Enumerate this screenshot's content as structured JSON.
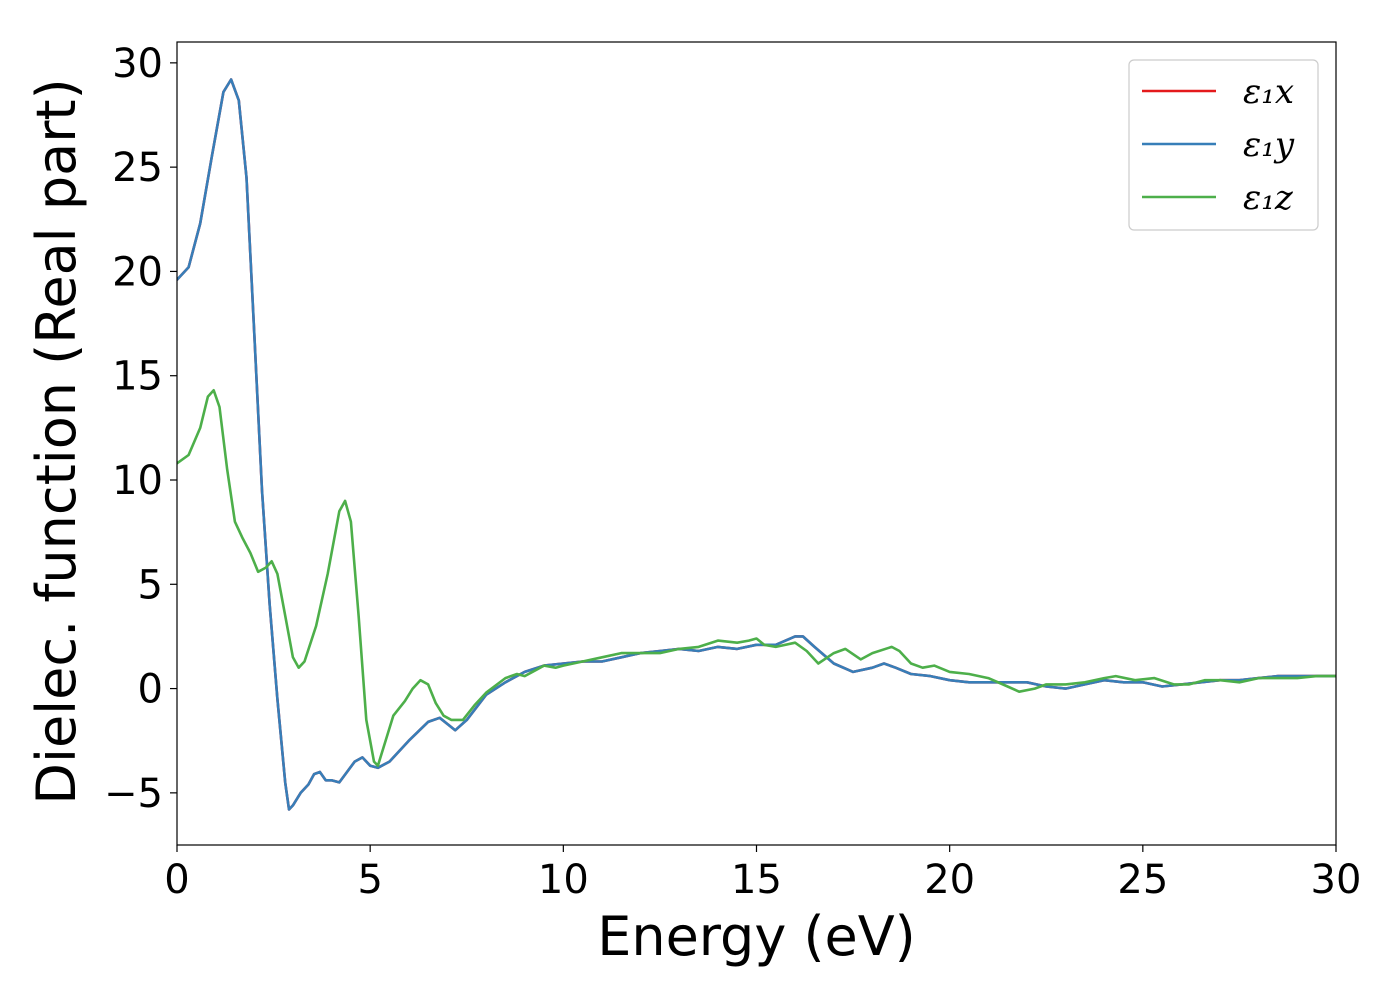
{
  "chart_data": {
    "type": "line",
    "xlabel": "Energy (eV)",
    "ylabel": "Dielec. function (Real part)",
    "xlim": [
      0,
      30
    ],
    "ylim": [
      -7.5,
      31
    ],
    "xticks": [
      0,
      5,
      10,
      15,
      20,
      25,
      30
    ],
    "yticks": [
      -5,
      0,
      5,
      10,
      15,
      20,
      25,
      30
    ],
    "xtick_labels": [
      "0",
      "5",
      "10",
      "15",
      "20",
      "25",
      "30"
    ],
    "ytick_labels": [
      "−5",
      "0",
      "5",
      "10",
      "15",
      "20",
      "25",
      "30"
    ],
    "grid": false,
    "legend_position": "top-right",
    "series": [
      {
        "name": "ε₁x",
        "color": "#e41a1c",
        "points": [
          [
            0,
            19.6
          ],
          [
            0.3,
            20.2
          ],
          [
            0.6,
            22.3
          ],
          [
            0.9,
            25.5
          ],
          [
            1.2,
            28.6
          ],
          [
            1.4,
            29.2
          ],
          [
            1.6,
            28.2
          ],
          [
            1.8,
            24.5
          ],
          [
            2.0,
            17.0
          ],
          [
            2.2,
            9.5
          ],
          [
            2.4,
            4.0
          ],
          [
            2.6,
            -0.5
          ],
          [
            2.8,
            -4.5
          ],
          [
            2.9,
            -5.8
          ],
          [
            3.0,
            -5.6
          ],
          [
            3.2,
            -5.0
          ],
          [
            3.4,
            -4.6
          ],
          [
            3.55,
            -4.1
          ],
          [
            3.7,
            -4.0
          ],
          [
            3.85,
            -4.4
          ],
          [
            4.0,
            -4.4
          ],
          [
            4.2,
            -4.5
          ],
          [
            4.4,
            -4.0
          ],
          [
            4.6,
            -3.5
          ],
          [
            4.8,
            -3.3
          ],
          [
            5.0,
            -3.7
          ],
          [
            5.2,
            -3.8
          ],
          [
            5.5,
            -3.5
          ],
          [
            6.0,
            -2.5
          ],
          [
            6.5,
            -1.6
          ],
          [
            6.8,
            -1.4
          ],
          [
            7.0,
            -1.7
          ],
          [
            7.2,
            -2.0
          ],
          [
            7.5,
            -1.5
          ],
          [
            8.0,
            -0.3
          ],
          [
            8.5,
            0.3
          ],
          [
            9.0,
            0.8
          ],
          [
            9.5,
            1.1
          ],
          [
            10.0,
            1.2
          ],
          [
            10.5,
            1.3
          ],
          [
            11.0,
            1.3
          ],
          [
            11.5,
            1.5
          ],
          [
            12.0,
            1.7
          ],
          [
            12.5,
            1.8
          ],
          [
            13.0,
            1.9
          ],
          [
            13.5,
            1.8
          ],
          [
            14.0,
            2.0
          ],
          [
            14.5,
            1.9
          ],
          [
            15.0,
            2.1
          ],
          [
            15.5,
            2.1
          ],
          [
            16.0,
            2.5
          ],
          [
            16.2,
            2.5
          ],
          [
            16.5,
            2.0
          ],
          [
            17.0,
            1.2
          ],
          [
            17.5,
            0.8
          ],
          [
            18.0,
            1.0
          ],
          [
            18.3,
            1.2
          ],
          [
            18.6,
            1.0
          ],
          [
            19.0,
            0.7
          ],
          [
            19.5,
            0.6
          ],
          [
            20.0,
            0.4
          ],
          [
            20.5,
            0.3
          ],
          [
            21.0,
            0.3
          ],
          [
            21.5,
            0.3
          ],
          [
            22.0,
            0.3
          ],
          [
            22.5,
            0.1
          ],
          [
            23.0,
            0.0
          ],
          [
            23.5,
            0.2
          ],
          [
            24.0,
            0.4
          ],
          [
            24.5,
            0.3
          ],
          [
            25.0,
            0.3
          ],
          [
            25.5,
            0.1
          ],
          [
            26.0,
            0.2
          ],
          [
            26.5,
            0.3
          ],
          [
            27.0,
            0.4
          ],
          [
            27.5,
            0.4
          ],
          [
            28.0,
            0.5
          ],
          [
            28.5,
            0.6
          ],
          [
            29.0,
            0.6
          ],
          [
            29.5,
            0.6
          ],
          [
            30.0,
            0.6
          ]
        ]
      },
      {
        "name": "ε₁y",
        "color": "#377eb8",
        "points": [
          [
            0,
            19.6
          ],
          [
            0.3,
            20.2
          ],
          [
            0.6,
            22.3
          ],
          [
            0.9,
            25.5
          ],
          [
            1.2,
            28.6
          ],
          [
            1.4,
            29.2
          ],
          [
            1.6,
            28.2
          ],
          [
            1.8,
            24.5
          ],
          [
            2.0,
            17.0
          ],
          [
            2.2,
            9.5
          ],
          [
            2.4,
            4.0
          ],
          [
            2.6,
            -0.5
          ],
          [
            2.8,
            -4.5
          ],
          [
            2.9,
            -5.8
          ],
          [
            3.0,
            -5.6
          ],
          [
            3.2,
            -5.0
          ],
          [
            3.4,
            -4.6
          ],
          [
            3.55,
            -4.1
          ],
          [
            3.7,
            -4.0
          ],
          [
            3.85,
            -4.4
          ],
          [
            4.0,
            -4.4
          ],
          [
            4.2,
            -4.5
          ],
          [
            4.4,
            -4.0
          ],
          [
            4.6,
            -3.5
          ],
          [
            4.8,
            -3.3
          ],
          [
            5.0,
            -3.7
          ],
          [
            5.2,
            -3.8
          ],
          [
            5.5,
            -3.5
          ],
          [
            6.0,
            -2.5
          ],
          [
            6.5,
            -1.6
          ],
          [
            6.8,
            -1.4
          ],
          [
            7.0,
            -1.7
          ],
          [
            7.2,
            -2.0
          ],
          [
            7.5,
            -1.5
          ],
          [
            8.0,
            -0.3
          ],
          [
            8.5,
            0.3
          ],
          [
            9.0,
            0.8
          ],
          [
            9.5,
            1.1
          ],
          [
            10.0,
            1.2
          ],
          [
            10.5,
            1.3
          ],
          [
            11.0,
            1.3
          ],
          [
            11.5,
            1.5
          ],
          [
            12.0,
            1.7
          ],
          [
            12.5,
            1.8
          ],
          [
            13.0,
            1.9
          ],
          [
            13.5,
            1.8
          ],
          [
            14.0,
            2.0
          ],
          [
            14.5,
            1.9
          ],
          [
            15.0,
            2.1
          ],
          [
            15.5,
            2.1
          ],
          [
            16.0,
            2.5
          ],
          [
            16.2,
            2.5
          ],
          [
            16.5,
            2.0
          ],
          [
            17.0,
            1.2
          ],
          [
            17.5,
            0.8
          ],
          [
            18.0,
            1.0
          ],
          [
            18.3,
            1.2
          ],
          [
            18.6,
            1.0
          ],
          [
            19.0,
            0.7
          ],
          [
            19.5,
            0.6
          ],
          [
            20.0,
            0.4
          ],
          [
            20.5,
            0.3
          ],
          [
            21.0,
            0.3
          ],
          [
            21.5,
            0.3
          ],
          [
            22.0,
            0.3
          ],
          [
            22.5,
            0.1
          ],
          [
            23.0,
            0.0
          ],
          [
            23.5,
            0.2
          ],
          [
            24.0,
            0.4
          ],
          [
            24.5,
            0.3
          ],
          [
            25.0,
            0.3
          ],
          [
            25.5,
            0.1
          ],
          [
            26.0,
            0.2
          ],
          [
            26.5,
            0.3
          ],
          [
            27.0,
            0.4
          ],
          [
            27.5,
            0.4
          ],
          [
            28.0,
            0.5
          ],
          [
            28.5,
            0.6
          ],
          [
            29.0,
            0.6
          ],
          [
            29.5,
            0.6
          ],
          [
            30.0,
            0.6
          ]
        ]
      },
      {
        "name": "ε₁z",
        "color": "#4daf4a",
        "points": [
          [
            0,
            10.8
          ],
          [
            0.3,
            11.2
          ],
          [
            0.6,
            12.5
          ],
          [
            0.8,
            14.0
          ],
          [
            0.95,
            14.3
          ],
          [
            1.1,
            13.5
          ],
          [
            1.3,
            10.5
          ],
          [
            1.5,
            8.0
          ],
          [
            1.7,
            7.2
          ],
          [
            1.9,
            6.5
          ],
          [
            2.1,
            5.6
          ],
          [
            2.3,
            5.8
          ],
          [
            2.45,
            6.1
          ],
          [
            2.6,
            5.5
          ],
          [
            2.8,
            3.5
          ],
          [
            3.0,
            1.5
          ],
          [
            3.15,
            1.0
          ],
          [
            3.3,
            1.3
          ],
          [
            3.6,
            3.0
          ],
          [
            3.9,
            5.5
          ],
          [
            4.2,
            8.5
          ],
          [
            4.35,
            9.0
          ],
          [
            4.5,
            8.0
          ],
          [
            4.7,
            3.5
          ],
          [
            4.9,
            -1.5
          ],
          [
            5.1,
            -3.5
          ],
          [
            5.2,
            -3.7
          ],
          [
            5.4,
            -2.5
          ],
          [
            5.6,
            -1.3
          ],
          [
            5.9,
            -0.6
          ],
          [
            6.1,
            0.0
          ],
          [
            6.3,
            0.4
          ],
          [
            6.5,
            0.2
          ],
          [
            6.7,
            -0.7
          ],
          [
            6.9,
            -1.3
          ],
          [
            7.1,
            -1.5
          ],
          [
            7.4,
            -1.5
          ],
          [
            7.7,
            -0.8
          ],
          [
            8.0,
            -0.2
          ],
          [
            8.5,
            0.5
          ],
          [
            8.8,
            0.7
          ],
          [
            9.0,
            0.6
          ],
          [
            9.3,
            0.9
          ],
          [
            9.5,
            1.1
          ],
          [
            9.8,
            1.0
          ],
          [
            10.0,
            1.1
          ],
          [
            10.5,
            1.3
          ],
          [
            11.0,
            1.5
          ],
          [
            11.5,
            1.7
          ],
          [
            12.0,
            1.7
          ],
          [
            12.5,
            1.7
          ],
          [
            13.0,
            1.9
          ],
          [
            13.5,
            2.0
          ],
          [
            14.0,
            2.3
          ],
          [
            14.5,
            2.2
          ],
          [
            14.8,
            2.3
          ],
          [
            15.0,
            2.4
          ],
          [
            15.2,
            2.1
          ],
          [
            15.5,
            2.0
          ],
          [
            16.0,
            2.2
          ],
          [
            16.3,
            1.8
          ],
          [
            16.6,
            1.2
          ],
          [
            17.0,
            1.7
          ],
          [
            17.3,
            1.9
          ],
          [
            17.7,
            1.4
          ],
          [
            18.0,
            1.7
          ],
          [
            18.5,
            2.0
          ],
          [
            18.7,
            1.8
          ],
          [
            19.0,
            1.2
          ],
          [
            19.3,
            1.0
          ],
          [
            19.6,
            1.1
          ],
          [
            20.0,
            0.8
          ],
          [
            20.5,
            0.7
          ],
          [
            21.0,
            0.5
          ],
          [
            21.5,
            0.1
          ],
          [
            21.8,
            -0.15
          ],
          [
            22.2,
            0.0
          ],
          [
            22.5,
            0.2
          ],
          [
            23.0,
            0.2
          ],
          [
            23.5,
            0.3
          ],
          [
            24.0,
            0.5
          ],
          [
            24.3,
            0.6
          ],
          [
            24.8,
            0.4
          ],
          [
            25.3,
            0.5
          ],
          [
            25.8,
            0.2
          ],
          [
            26.2,
            0.2
          ],
          [
            26.6,
            0.4
          ],
          [
            27.0,
            0.4
          ],
          [
            27.5,
            0.3
          ],
          [
            28.0,
            0.5
          ],
          [
            28.5,
            0.5
          ],
          [
            29.0,
            0.5
          ],
          [
            29.5,
            0.6
          ],
          [
            30.0,
            0.6
          ]
        ]
      }
    ]
  }
}
